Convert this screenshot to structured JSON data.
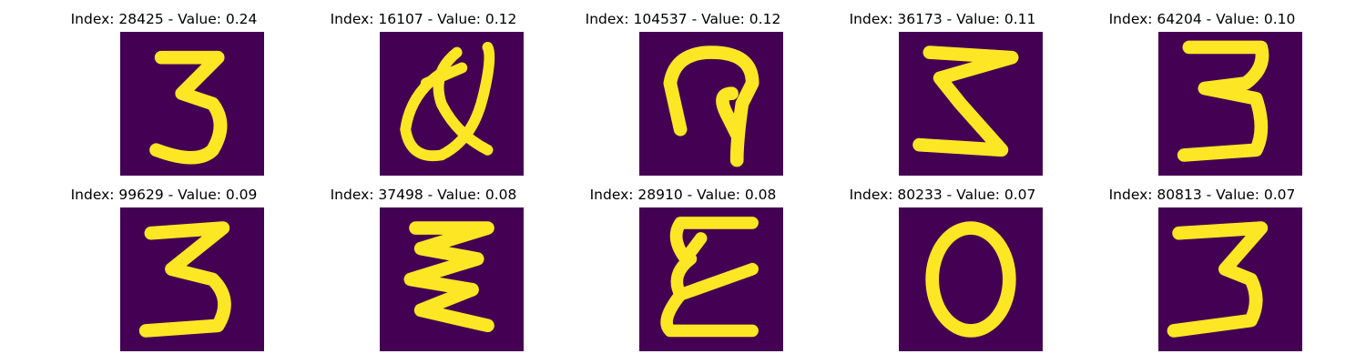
{
  "colors": {
    "background": "#440154",
    "mid": "#21918c",
    "stroke": "#fde725"
  },
  "panels": [
    {
      "index": 28425,
      "value": "0.24",
      "label": "Index: 28425 - Value: 0.24",
      "glyph": "3-a"
    },
    {
      "index": 16107,
      "value": "0.12",
      "label": "Index: 16107 - Value: 0.12",
      "glyph": "loop-scribble"
    },
    {
      "index": 104537,
      "value": "0.12",
      "label": "Index: 104537 - Value: 0.12",
      "glyph": "hook"
    },
    {
      "index": 36173,
      "value": "0.11",
      "label": "Index: 36173 - Value: 0.11",
      "glyph": "3-zigzag"
    },
    {
      "index": 64204,
      "value": "0.10",
      "label": "Index: 64204 - Value: 0.10",
      "glyph": "3-b"
    },
    {
      "index": 99629,
      "value": "0.09",
      "label": "Index: 99629 - Value: 0.09",
      "glyph": "3-c"
    },
    {
      "index": 37498,
      "value": "0.08",
      "label": "Index: 37498 - Value: 0.08",
      "glyph": "3-zigzag-b"
    },
    {
      "index": 28910,
      "value": "0.08",
      "label": "Index: 28910 - Value: 0.08",
      "glyph": "epsilon"
    },
    {
      "index": 80233,
      "value": "0.07",
      "label": "Index: 80233 - Value: 0.07",
      "glyph": "0"
    },
    {
      "index": 80813,
      "value": "0.07",
      "label": "Index: 80813 - Value: 0.07",
      "glyph": "3-d"
    }
  ]
}
